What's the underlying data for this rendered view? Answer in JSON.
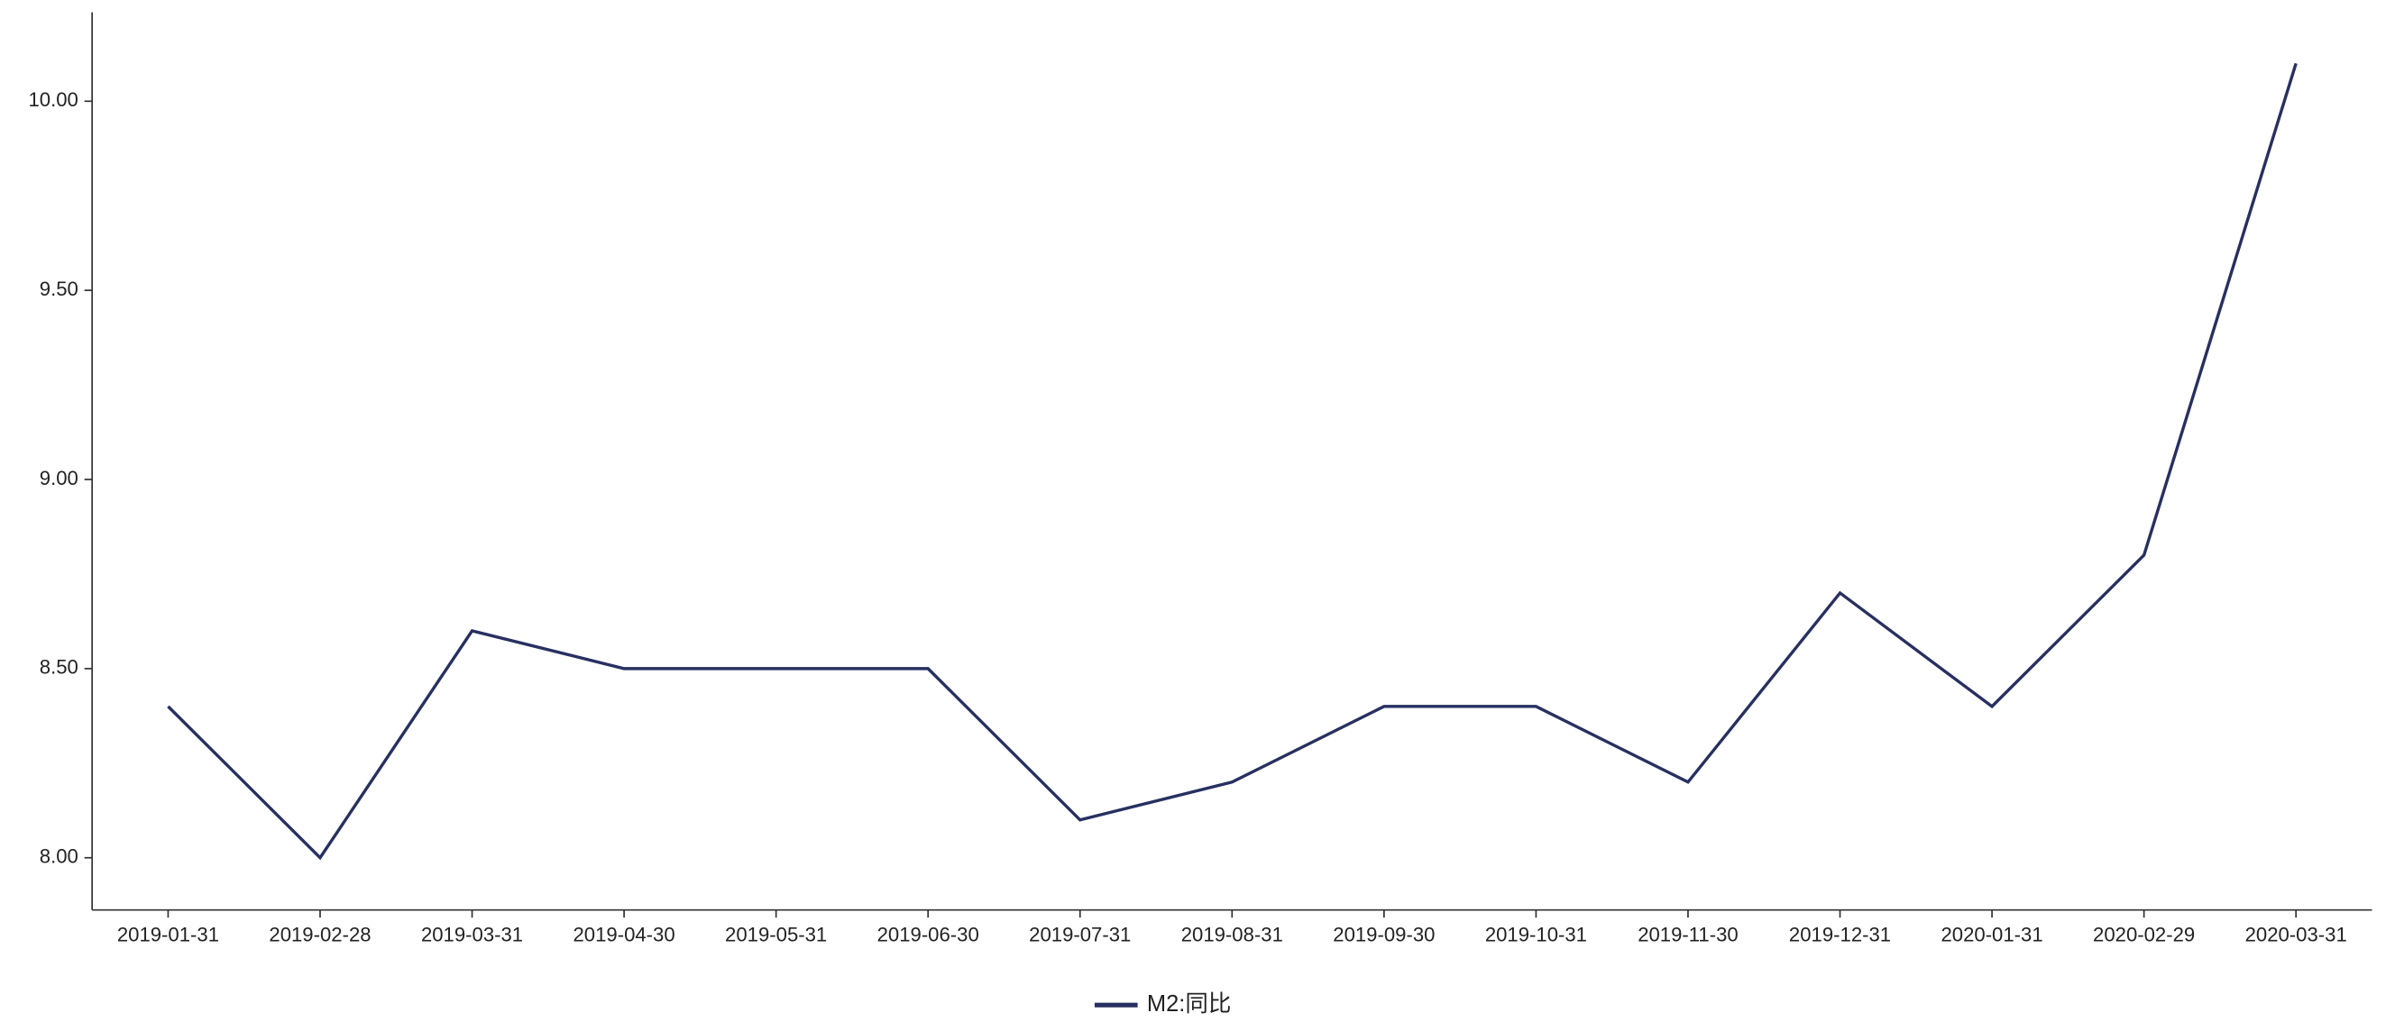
{
  "chart_data": {
    "type": "line",
    "categories": [
      "2019-01-31",
      "2019-02-28",
      "2019-03-31",
      "2019-04-30",
      "2019-05-31",
      "2019-06-30",
      "2019-07-31",
      "2019-08-31",
      "2019-09-30",
      "2019-10-31",
      "2019-11-30",
      "2019-12-31",
      "2020-01-31",
      "2020-02-29",
      "2020-03-31"
    ],
    "series": [
      {
        "name": "M2:同比",
        "color": "#283061",
        "values": [
          8.4,
          8.0,
          8.6,
          8.5,
          8.5,
          8.5,
          8.1,
          8.2,
          8.4,
          8.4,
          8.2,
          8.7,
          8.4,
          8.8,
          10.1
        ]
      }
    ],
    "ylim": [
      7.862,
      10.235
    ],
    "yticks": [
      {
        "value": 8,
        "label": "8.00"
      },
      {
        "value": 8.5,
        "label": "8.50"
      },
      {
        "value": 9,
        "label": "9.00"
      },
      {
        "value": 9.5,
        "label": "9.50"
      },
      {
        "value": 10,
        "label": "10.00"
      }
    ],
    "grid": false,
    "legend": "bottom"
  }
}
